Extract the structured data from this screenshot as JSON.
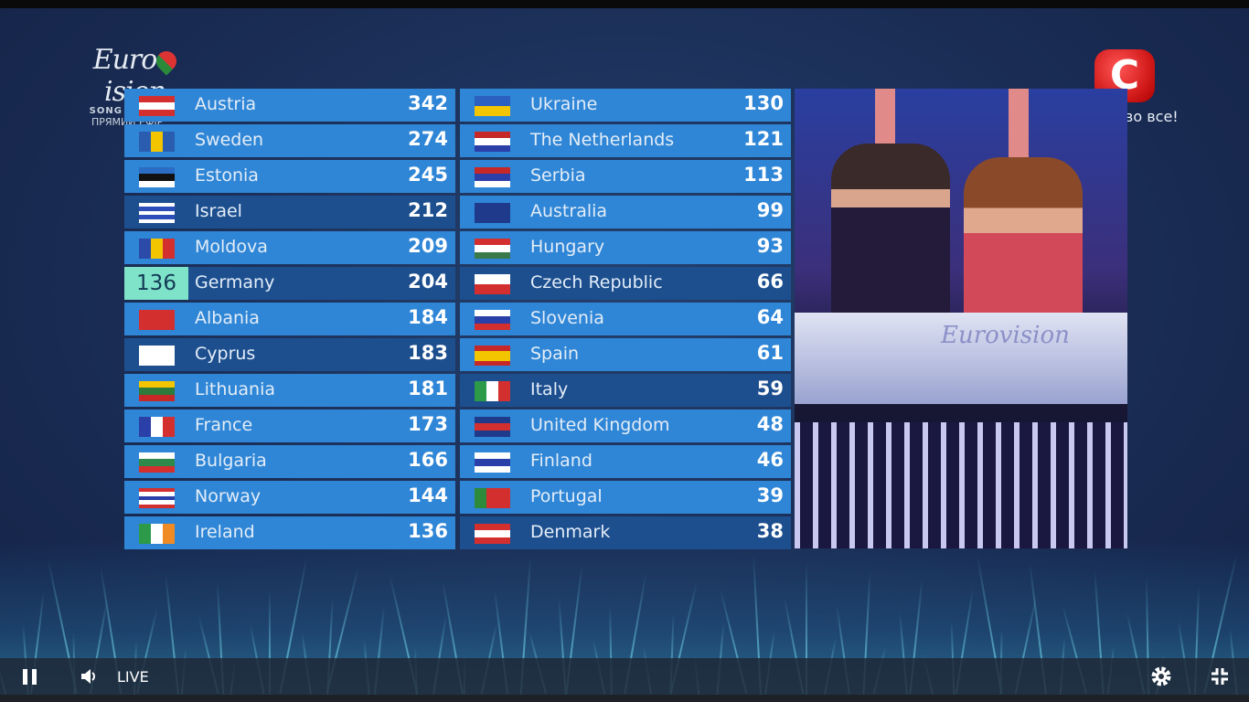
{
  "overlay": {
    "logo_text": "Eurovision",
    "logo_sub": "SONG CONTEST",
    "logo_live": "ПРЯМИЙ ЕФІР",
    "channel_letter": "С",
    "channel_slogan": "Можливо все!",
    "stage_logo": "Eurovision"
  },
  "scoreboard": {
    "left": [
      {
        "country": "Austria",
        "points": "342",
        "flag": [
          "#d32f2f",
          "#ffffff",
          "#d32f2f"
        ],
        "dir": "h",
        "dark": false
      },
      {
        "country": "Sweden",
        "points": "274",
        "flag": [
          "#2a5db0",
          "#f2c500",
          "#2a5db0"
        ],
        "dir": "v",
        "dark": false
      },
      {
        "country": "Estonia",
        "points": "245",
        "flag": [
          "#2b6cc4",
          "#111111",
          "#ffffff"
        ],
        "dir": "h",
        "dark": false
      },
      {
        "country": "Israel",
        "points": "212",
        "flag": [
          "#ffffff",
          "#2d4db8",
          "#ffffff",
          "#2d4db8",
          "#ffffff"
        ],
        "dir": "h",
        "dark": true
      },
      {
        "country": "Moldova",
        "points": "209",
        "flag": [
          "#2c4aa8",
          "#f2c500",
          "#d32f2f"
        ],
        "dir": "v",
        "dark": false
      },
      {
        "country": "Germany",
        "points": "204",
        "flag": [
          "#111111",
          "#d32f2f",
          "#f2c500"
        ],
        "dir": "h",
        "dark": true,
        "badge": "136"
      },
      {
        "country": "Albania",
        "points": "184",
        "flag": [
          "#d32f2f"
        ],
        "dir": "h",
        "dark": false
      },
      {
        "country": "Cyprus",
        "points": "183",
        "flag": [
          "#ffffff"
        ],
        "dir": "h",
        "dark": true
      },
      {
        "country": "Lithuania",
        "points": "181",
        "flag": [
          "#f2c500",
          "#2d7a3a",
          "#c62828"
        ],
        "dir": "h",
        "dark": false
      },
      {
        "country": "France",
        "points": "173",
        "flag": [
          "#2b3fa8",
          "#ffffff",
          "#d32f2f"
        ],
        "dir": "v",
        "dark": false
      },
      {
        "country": "Bulgaria",
        "points": "166",
        "flag": [
          "#ffffff",
          "#2d8a4a",
          "#d32f2f"
        ],
        "dir": "h",
        "dark": false
      },
      {
        "country": "Norway",
        "points": "144",
        "flag": [
          "#d32f2f",
          "#ffffff",
          "#2b3fa8",
          "#ffffff",
          "#d32f2f"
        ],
        "dir": "h",
        "dark": false
      },
      {
        "country": "Ireland",
        "points": "136",
        "flag": [
          "#2d9a4a",
          "#ffffff",
          "#f08a24"
        ],
        "dir": "v",
        "dark": false
      }
    ],
    "right": [
      {
        "country": "Ukraine",
        "points": "130",
        "flag": [
          "#2b5fc0",
          "#f2c500"
        ],
        "dir": "h",
        "dark": false
      },
      {
        "country": "The Netherlands",
        "points": "121",
        "flag": [
          "#c62828",
          "#ffffff",
          "#2b3fa8"
        ],
        "dir": "h",
        "dark": false
      },
      {
        "country": "Serbia",
        "points": "113",
        "flag": [
          "#c62828",
          "#2b3fa8",
          "#ffffff"
        ],
        "dir": "h",
        "dark": false
      },
      {
        "country": "Australia",
        "points": "99",
        "flag": [
          "#1f3a8a"
        ],
        "dir": "h",
        "dark": false
      },
      {
        "country": "Hungary",
        "points": "93",
        "flag": [
          "#d32f2f",
          "#ffffff",
          "#3a7a4a"
        ],
        "dir": "h",
        "dark": false
      },
      {
        "country": "Czech Republic",
        "points": "66",
        "flag": [
          "#ffffff",
          "#d32f2f"
        ],
        "dir": "h",
        "dark": true
      },
      {
        "country": "Slovenia",
        "points": "64",
        "flag": [
          "#ffffff",
          "#2b3fa8",
          "#d32f2f"
        ],
        "dir": "h",
        "dark": false
      },
      {
        "country": "Spain",
        "points": "61",
        "flag": [
          "#c62828",
          "#f2c500",
          "#f2c500",
          "#c62828"
        ],
        "dir": "h",
        "dark": false
      },
      {
        "country": "Italy",
        "points": "59",
        "flag": [
          "#2d9a4a",
          "#ffffff",
          "#d32f2f"
        ],
        "dir": "v",
        "dark": true
      },
      {
        "country": "United Kingdom",
        "points": "48",
        "flag": [
          "#1f3a8a",
          "#d32f2f",
          "#1f3a8a"
        ],
        "dir": "h",
        "dark": false
      },
      {
        "country": "Finland",
        "points": "46",
        "flag": [
          "#ffffff",
          "#2b3fa8",
          "#ffffff"
        ],
        "dir": "h",
        "dark": false
      },
      {
        "country": "Portugal",
        "points": "39",
        "flag": [
          "#2d8a3a",
          "#d32f2f",
          "#d32f2f"
        ],
        "dir": "v",
        "dark": false
      },
      {
        "country": "Denmark",
        "points": "38",
        "flag": [
          "#d32f2f",
          "#ffffff",
          "#d32f2f"
        ],
        "dir": "h",
        "dark": true
      }
    ]
  },
  "player": {
    "pause_icon": "pause-icon",
    "volume_icon": "volume-icon",
    "live_label": "LIVE",
    "settings_icon": "gear-icon",
    "exit_fullscreen_icon": "exit-fullscreen-icon"
  }
}
